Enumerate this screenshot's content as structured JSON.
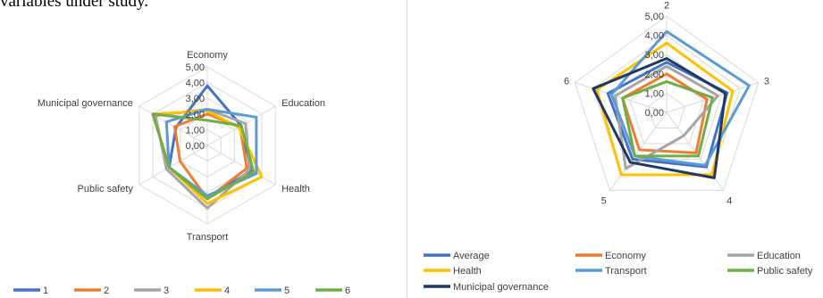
{
  "top_text": "variables under study.",
  "chart_data": [
    {
      "type": "radar",
      "axes": [
        "Economy",
        "Education",
        "Health",
        "Transport",
        "Public safety",
        "Municipal governance"
      ],
      "tick_labels": [
        "0,00",
        "1,00",
        "2,00",
        "3,00",
        "4,00",
        "5,00"
      ],
      "rlim": [
        0,
        5
      ],
      "grid": true,
      "legend_position": "bottom",
      "series": [
        {
          "name": "1",
          "color": "#4472c4",
          "values": [
            3.8,
            2.5,
            3.2,
            3.4,
            2.8,
            2.3
          ]
        },
        {
          "name": "2",
          "color": "#ed7d31",
          "values": [
            2.0,
            2.4,
            2.9,
            3.4,
            2.0,
            2.4
          ]
        },
        {
          "name": "3",
          "color": "#a5a5a5",
          "values": [
            2.3,
            2.8,
            3.1,
            4.0,
            3.0,
            3.8
          ]
        },
        {
          "name": "4",
          "color": "#ffc000",
          "values": [
            2.2,
            2.3,
            4.0,
            3.7,
            2.8,
            4.0
          ]
        },
        {
          "name": "5",
          "color": "#5b9bd5",
          "values": [
            2.3,
            3.6,
            3.6,
            3.2,
            2.8,
            3.0
          ]
        },
        {
          "name": "6",
          "color": "#70ad47",
          "values": [
            1.6,
            2.5,
            3.4,
            3.4,
            2.8,
            4.0
          ]
        }
      ]
    },
    {
      "type": "radar",
      "axes": [
        "2",
        "3",
        "4",
        "5",
        "6"
      ],
      "tick_labels": [
        "0,00",
        "1,00",
        "2,00",
        "3,00",
        "4,00",
        "5,00"
      ],
      "rlim": [
        0,
        5
      ],
      "grid": true,
      "legend_position": "bottom",
      "series": [
        {
          "name": "Average",
          "color": "#4472c4",
          "values": [
            2.6,
            3.3,
            3.5,
            3.0,
            3.2
          ]
        },
        {
          "name": "Economy",
          "color": "#ed7d31",
          "values": [
            2.0,
            2.2,
            2.6,
            2.4,
            2.4
          ]
        },
        {
          "name": "Education",
          "color": "#a5a5a5",
          "values": [
            2.4,
            2.8,
            1.5,
            3.6,
            2.8
          ]
        },
        {
          "name": "Health",
          "color": "#ffc000",
          "values": [
            3.6,
            3.6,
            4.0,
            4.0,
            3.8
          ]
        },
        {
          "name": "Transport",
          "color": "#5b9bd5",
          "values": [
            4.2,
            4.5,
            3.4,
            2.8,
            3.0
          ]
        },
        {
          "name": "Public safety",
          "color": "#70ad47",
          "values": [
            1.6,
            2.5,
            2.8,
            2.8,
            2.4
          ]
        },
        {
          "name": "Municipal governance",
          "color": "#203864",
          "values": [
            2.8,
            3.2,
            4.2,
            3.2,
            4.0
          ]
        }
      ]
    }
  ]
}
